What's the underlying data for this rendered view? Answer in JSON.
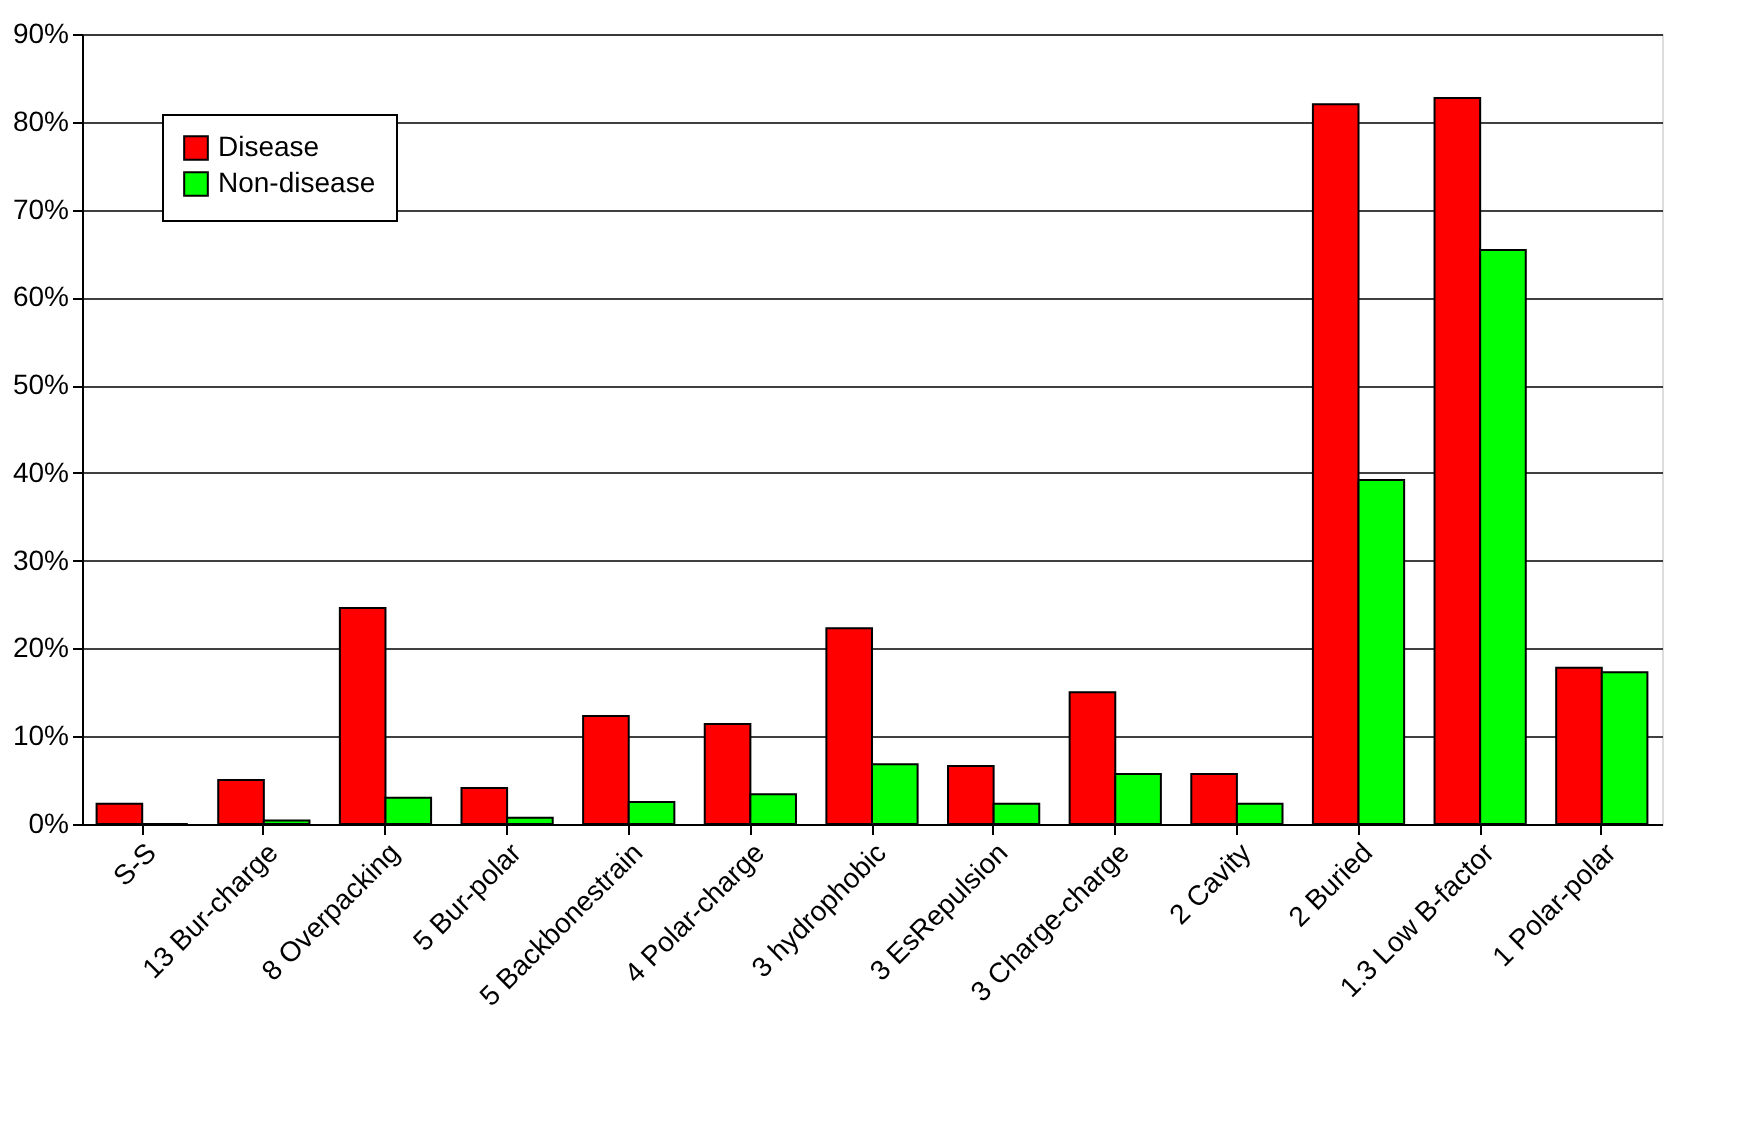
{
  "chart_data": {
    "type": "bar",
    "categories": [
      "S-S",
      "13 Bur-charge",
      "8 Overpacking",
      "5 Bur-polar",
      "5 Backbonestrain",
      "4 Polar-charge",
      "3 hydrophobic",
      "3 EsRepulsion",
      "3 Charge-charge",
      "2 Cavity",
      "2 Buried",
      "1.3 Low B-factor",
      "1 Polar-polar"
    ],
    "series": [
      {
        "name": "Disease",
        "color": "#ff0000",
        "values": [
          2.3,
          5.0,
          24.6,
          4.1,
          12.3,
          11.4,
          22.3,
          6.6,
          15.0,
          5.7,
          82.0,
          82.7,
          17.8
        ]
      },
      {
        "name": "Non-disease",
        "color": "#00ff00",
        "values": [
          0,
          0.4,
          3.0,
          0.7,
          2.5,
          3.4,
          6.8,
          2.3,
          5.7,
          2.3,
          39.2,
          65.4,
          17.3
        ]
      }
    ],
    "ylim": [
      0,
      90
    ],
    "yticks": [
      {
        "value": 0,
        "label": "0%"
      },
      {
        "value": 10,
        "label": "10%"
      },
      {
        "value": 20,
        "label": "20%"
      },
      {
        "value": 30,
        "label": "30%"
      },
      {
        "value": 40,
        "label": "40%"
      },
      {
        "value": 50,
        "label": "50%"
      },
      {
        "value": 60,
        "label": "60%"
      },
      {
        "value": 70,
        "label": "70%"
      },
      {
        "value": 80,
        "label": "80%"
      },
      {
        "value": 90,
        "label": "90%"
      }
    ],
    "grid": "y",
    "legend": "top left"
  }
}
